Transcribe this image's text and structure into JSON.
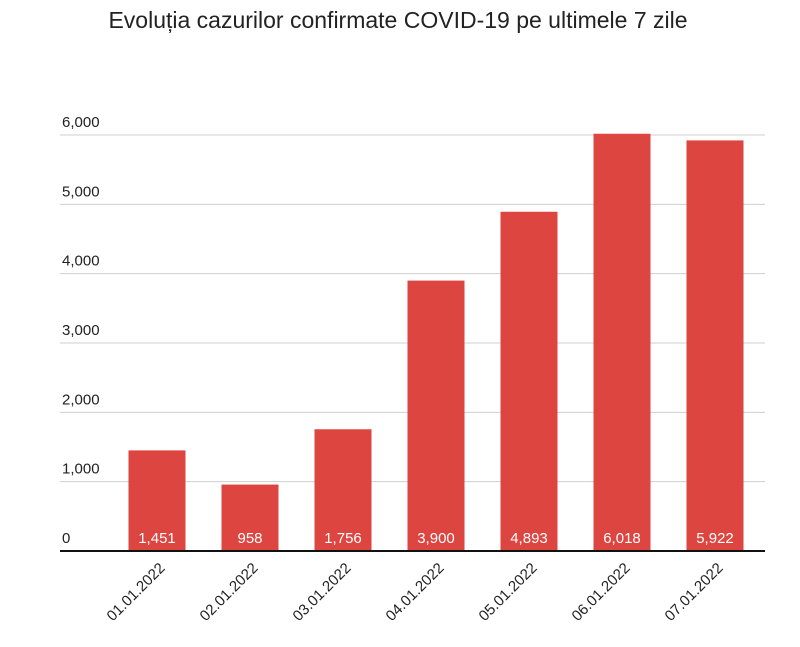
{
  "chart_data": {
    "type": "bar",
    "title": "Evoluția cazurilor confirmate COVID-19 pe ultimele 7 zile",
    "categories": [
      "01.01.2022",
      "02.01.2022",
      "03.01.2022",
      "04.01.2022",
      "05.01.2022",
      "06.01.2022",
      "07.01.2022"
    ],
    "values": [
      1451,
      958,
      1756,
      3900,
      4893,
      6018,
      5922
    ],
    "value_labels": [
      "1,451",
      "958",
      "1,756",
      "3,900",
      "4,893",
      "6,018",
      "5,922"
    ],
    "color": "#dd4540",
    "ylim": [
      0,
      6000
    ],
    "yticks": [
      0,
      {
        "value": 1000,
        "label": "1,000"
      },
      {
        "value": 2000,
        "label": "2,000"
      },
      {
        "value": 3000,
        "label": "3,000"
      },
      {
        "value": 4000,
        "label": "4,000"
      },
      {
        "value": 5000,
        "label": "5,000"
      },
      {
        "value": 6000,
        "label": "6,000"
      }
    ],
    "grid": true
  }
}
